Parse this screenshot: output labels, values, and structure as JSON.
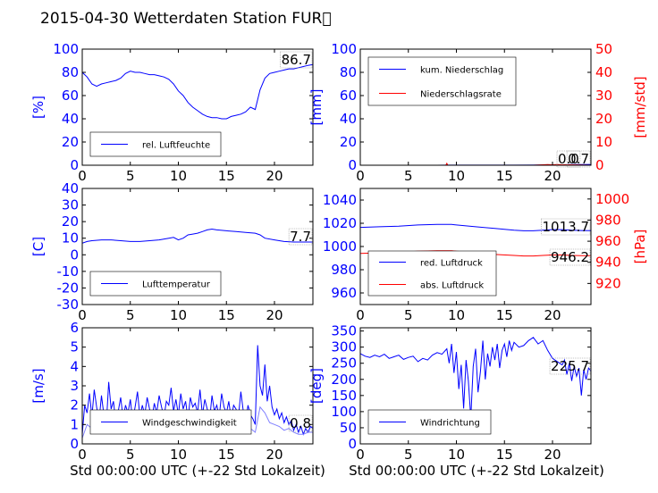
{
  "title": "2015-04-30 Wetterdaten Station FUR\u0000",
  "xlabel": "Std 00:00:00 UTC (+-22 Std Lokalzeit)",
  "colors": {
    "primary": "#0000ff",
    "secondary": "#ff0000",
    "light": "#8080ff"
  },
  "chart_data": [
    {
      "id": "humidity",
      "type": "line",
      "ylabel": "[%]",
      "xlim": [
        0,
        24
      ],
      "ylim": [
        0,
        100
      ],
      "xticks": [
        0,
        5,
        10,
        15,
        20
      ],
      "yticks": [
        0,
        20,
        40,
        60,
        80,
        100
      ],
      "annotation": "86.7",
      "legend": {
        "placement": "lower-left"
      },
      "series": [
        {
          "name": "rel. Luftfeuchte",
          "color": "#0000ff",
          "x": [
            0,
            0.5,
            1,
            1.5,
            2,
            2.5,
            3,
            3.5,
            4,
            4.5,
            5,
            5.5,
            6,
            6.5,
            7,
            7.5,
            8,
            8.5,
            9,
            9.5,
            10,
            10.5,
            11,
            11.5,
            12,
            12.5,
            13,
            13.5,
            14,
            14.5,
            15,
            15.5,
            16,
            16.5,
            17,
            17.5,
            18,
            18.5,
            19,
            19.5,
            20,
            20.5,
            21,
            21.5,
            22,
            22.5,
            23,
            23.5,
            24
          ],
          "y": [
            80,
            76,
            70,
            68,
            70,
            71,
            72,
            73,
            75,
            79,
            81,
            80,
            80,
            79,
            78,
            78,
            77,
            76,
            74,
            70,
            64,
            60,
            54,
            50,
            47,
            44,
            42,
            41,
            41,
            40,
            40,
            42,
            43,
            44,
            46,
            50,
            48,
            65,
            75,
            79,
            80,
            81,
            82,
            83,
            83,
            84,
            85,
            86,
            86.7
          ]
        }
      ]
    },
    {
      "id": "precipitation",
      "type": "line",
      "ylabel": "[mm]",
      "ylabel_right": "[mm/std]",
      "xlim": [
        0,
        24
      ],
      "ylim": [
        0,
        100
      ],
      "ylim_right": [
        0,
        50
      ],
      "xticks": [
        0,
        5,
        10,
        15,
        20
      ],
      "yticks": [
        0,
        20,
        40,
        60,
        80,
        100
      ],
      "yticks_right": [
        0,
        10,
        20,
        30,
        40,
        50
      ],
      "annotations": [
        "0.0",
        "0.7"
      ],
      "legend": {
        "placement": "upper-left"
      },
      "series": [
        {
          "name": "kum. Niederschlag",
          "color": "#0000ff",
          "axis": "left",
          "x": [
            0,
            4,
            8,
            9,
            12,
            16,
            19,
            20,
            21,
            22,
            23,
            24
          ],
          "y": [
            0,
            0,
            0,
            0.1,
            0.1,
            0.1,
            0.2,
            0.3,
            0.4,
            0.5,
            0.6,
            0.7
          ]
        },
        {
          "name": "Niederschlagsrate",
          "color": "#ff0000",
          "axis": "right",
          "x": [
            0,
            2,
            4,
            6,
            8,
            8.9,
            9,
            9.1,
            10,
            12,
            14,
            16,
            18,
            19.5,
            20,
            20.5,
            21,
            22,
            23,
            24
          ],
          "y": [
            0,
            0,
            0,
            0,
            0,
            0,
            0.8,
            0,
            0,
            0,
            0,
            0,
            0,
            0.3,
            0.2,
            0.3,
            0.2,
            0.2,
            0.1,
            0
          ]
        }
      ]
    },
    {
      "id": "temperature",
      "type": "line",
      "ylabel": "[C]",
      "xlim": [
        0,
        24
      ],
      "ylim": [
        -30,
        40
      ],
      "xticks": [
        0,
        5,
        10,
        15,
        20
      ],
      "yticks": [
        -30,
        -20,
        -10,
        0,
        10,
        20,
        30,
        40
      ],
      "annotation": "7.7",
      "legend": {
        "placement": "lower-left"
      },
      "series": [
        {
          "name": "Lufttemperatur",
          "color": "#0000ff",
          "x": [
            0,
            0.5,
            1,
            2,
            3,
            4,
            5,
            6,
            7,
            8,
            9,
            9.5,
            10,
            10.5,
            11,
            11.5,
            12,
            12.5,
            13,
            13.5,
            14,
            15,
            16,
            17,
            18,
            18.5,
            19,
            20,
            21,
            22,
            23,
            24
          ],
          "y": [
            7,
            8,
            8.5,
            9,
            9,
            8.5,
            8,
            8,
            8.5,
            9,
            10,
            10.5,
            9,
            10,
            12,
            12.5,
            13,
            14,
            15,
            15.5,
            15,
            14.5,
            14,
            13.5,
            13,
            12,
            10,
            9,
            8,
            7.7,
            7.7,
            7.7
          ]
        }
      ]
    },
    {
      "id": "pressure",
      "type": "line",
      "ylabel_right": "[hPa]",
      "xlim": [
        0,
        24
      ],
      "ylim": [
        950,
        1050
      ],
      "ylim_right": [
        900,
        1010
      ],
      "xticks": [
        0,
        5,
        10,
        15,
        20
      ],
      "yticks": [
        960,
        980,
        1000,
        1020,
        1040
      ],
      "yticks_right": [
        920,
        940,
        960,
        980,
        1000
      ],
      "annotations": [
        "1013.7",
        "946.2"
      ],
      "legend": {
        "placement": "lower-left"
      },
      "series": [
        {
          "name": "red. Luftdruck",
          "color": "#0000ff",
          "axis": "left",
          "x": [
            0,
            2,
            4,
            6,
            8,
            9.5,
            10,
            12,
            14,
            16,
            17,
            18,
            19,
            20,
            21,
            22,
            23,
            24
          ],
          "y": [
            1016.5,
            1017,
            1017.5,
            1018.5,
            1019,
            1019,
            1018.5,
            1017,
            1015.5,
            1014,
            1013.5,
            1013.5,
            1014,
            1014.5,
            1014.5,
            1014,
            1013.8,
            1013.7
          ]
        },
        {
          "name": "abs. Luftdruck",
          "color": "#ff0000",
          "axis": "right",
          "x": [
            0,
            2,
            4,
            6,
            8,
            9.5,
            10,
            12,
            14,
            16,
            17,
            18,
            19,
            20,
            21,
            22,
            23,
            24
          ],
          "y": [
            948.5,
            949,
            949.5,
            950.5,
            951,
            951,
            950.5,
            949,
            947.5,
            946.5,
            946,
            946,
            946.5,
            947,
            947,
            946.5,
            946.3,
            946.2
          ]
        }
      ]
    },
    {
      "id": "wind",
      "type": "line",
      "ylabel": "[m/s]",
      "xlim": [
        0,
        24
      ],
      "ylim": [
        0,
        6
      ],
      "xticks": [
        0,
        5,
        10,
        15,
        20
      ],
      "yticks": [
        0,
        1,
        2,
        3,
        4,
        5,
        6
      ],
      "annotation": "0.8",
      "legend": {
        "placement": "lower-left"
      },
      "series": [
        {
          "name": "Windgeschwindigkeit",
          "color": "#0000ff",
          "x": [
            0,
            0.25,
            0.5,
            0.75,
            1,
            1.25,
            1.5,
            1.75,
            2,
            2.25,
            2.5,
            2.75,
            3,
            3.25,
            3.5,
            3.75,
            4,
            4.25,
            4.5,
            4.75,
            5,
            5.25,
            5.5,
            5.75,
            6,
            6.25,
            6.5,
            6.75,
            7,
            7.25,
            7.5,
            7.75,
            8,
            8.25,
            8.5,
            8.75,
            9,
            9.25,
            9.5,
            9.75,
            10,
            10.25,
            10.5,
            10.75,
            11,
            11.25,
            11.5,
            11.75,
            12,
            12.25,
            12.5,
            12.75,
            13,
            13.25,
            13.5,
            13.75,
            14,
            14.25,
            14.5,
            14.75,
            15,
            15.25,
            15.5,
            15.75,
            16,
            16.25,
            16.5,
            16.75,
            17,
            17.25,
            17.5,
            17.75,
            18,
            18.25,
            18.5,
            18.75,
            19,
            19.25,
            19.5,
            19.75,
            20,
            20.25,
            20.5,
            20.75,
            21,
            21.25,
            21.5,
            21.75,
            22,
            22.25,
            22.5,
            22.75,
            23,
            23.25,
            23.5,
            23.75,
            24
          ],
          "y": [
            0.5,
            2.0,
            1.6,
            2.6,
            1.4,
            2.8,
            1.9,
            1.2,
            2.5,
            1.5,
            1.0,
            3.2,
            1.8,
            2.2,
            1.1,
            1.7,
            2.4,
            1.3,
            2.0,
            1.6,
            2.3,
            1.2,
            1.9,
            2.7,
            1.4,
            2.0,
            1.5,
            2.4,
            1.8,
            1.3,
            2.1,
            1.6,
            2.5,
            1.9,
            1.4,
            2.2,
            2.0,
            2.9,
            1.7,
            2.3,
            1.5,
            2.6,
            1.8,
            2.2,
            1.3,
            2.4,
            1.9,
            2.1,
            1.6,
            2.8,
            1.5,
            2.3,
            1.8,
            1.2,
            2.5,
            1.7,
            2.0,
            1.4,
            2.6,
            1.9,
            1.6,
            2.2,
            1.3,
            2.0,
            1.8,
            1.4,
            2.7,
            1.7,
            1.2,
            2.0,
            1.5,
            1.3,
            1.0,
            5.1,
            3.0,
            2.5,
            4.1,
            2.2,
            3.0,
            1.9,
            1.5,
            1.8,
            1.3,
            1.6,
            1.1,
            1.4,
            1.0,
            1.2,
            0.7,
            1.0,
            0.6,
            0.9,
            0.5,
            0.8,
            0.6,
            0.9,
            0.8
          ]
        },
        {
          "name": "",
          "color": "#8080ff",
          "x": [
            0,
            0.5,
            1,
            1.5,
            2,
            2.5,
            3,
            3.5,
            4,
            4.5,
            5,
            5.5,
            6,
            6.5,
            7,
            7.5,
            8,
            8.5,
            9,
            9.5,
            10,
            10.5,
            11,
            11.5,
            12,
            12.5,
            13,
            13.5,
            14,
            14.5,
            15,
            15.5,
            16,
            16.5,
            17,
            17.5,
            18,
            18.5,
            19,
            19.5,
            20,
            20.5,
            21,
            21.5,
            22,
            22.5,
            23,
            23.5,
            24
          ],
          "y": [
            0.3,
            1.0,
            0.8,
            1.3,
            0.9,
            1.1,
            0.7,
            1.2,
            0.8,
            1.0,
            1.3,
            0.9,
            1.1,
            0.8,
            1.2,
            0.9,
            1.4,
            1.0,
            1.1,
            1.3,
            0.9,
            1.2,
            1.0,
            1.4,
            0.8,
            1.1,
            1.0,
            1.3,
            0.9,
            1.2,
            1.0,
            1.1,
            0.9,
            1.3,
            1.0,
            0.8,
            0.6,
            1.9,
            1.6,
            1.1,
            1.0,
            0.9,
            0.7,
            0.8,
            0.6,
            0.5,
            0.5,
            0.6,
            0.6
          ]
        }
      ]
    },
    {
      "id": "winddir",
      "type": "line",
      "ylabel": "[deg]",
      "xlim": [
        0,
        24
      ],
      "ylim": [
        0,
        360
      ],
      "xticks": [
        0,
        5,
        10,
        15,
        20
      ],
      "yticks": [
        0,
        50,
        100,
        150,
        200,
        250,
        300,
        350
      ],
      "annotation": "225.7",
      "legend": {
        "placement": "lower-left"
      },
      "series": [
        {
          "name": "Windrichtung",
          "color": "#0000ff",
          "x": [
            0,
            0.5,
            1,
            1.5,
            2,
            2.5,
            3,
            3.5,
            4,
            4.5,
            5,
            5.5,
            6,
            6.5,
            7,
            7.5,
            8,
            8.5,
            9,
            9.25,
            9.5,
            9.75,
            10,
            10.25,
            10.5,
            10.75,
            11,
            11.25,
            11.5,
            11.75,
            12,
            12.25,
            12.5,
            12.75,
            13,
            13.25,
            13.5,
            13.75,
            14,
            14.25,
            14.5,
            14.75,
            15,
            15.25,
            15.5,
            15.75,
            16,
            16.5,
            17,
            17.5,
            18,
            18.5,
            19,
            19.5,
            20,
            20.5,
            21,
            21.25,
            21.5,
            21.75,
            22,
            22.25,
            22.5,
            22.75,
            23,
            23.25,
            23.5,
            23.75,
            24
          ],
          "y": [
            280,
            272,
            268,
            275,
            270,
            278,
            265,
            270,
            275,
            262,
            268,
            272,
            255,
            265,
            260,
            275,
            283,
            278,
            295,
            250,
            310,
            220,
            285,
            170,
            245,
            110,
            260,
            195,
            80,
            240,
            295,
            160,
            225,
            320,
            200,
            280,
            240,
            300,
            260,
            310,
            235,
            290,
            310,
            270,
            320,
            290,
            315,
            300,
            305,
            320,
            330,
            310,
            320,
            290,
            265,
            255,
            245,
            260,
            215,
            250,
            195,
            240,
            210,
            235,
            150,
            230,
            200,
            235,
            225.7
          ]
        }
      ]
    }
  ]
}
